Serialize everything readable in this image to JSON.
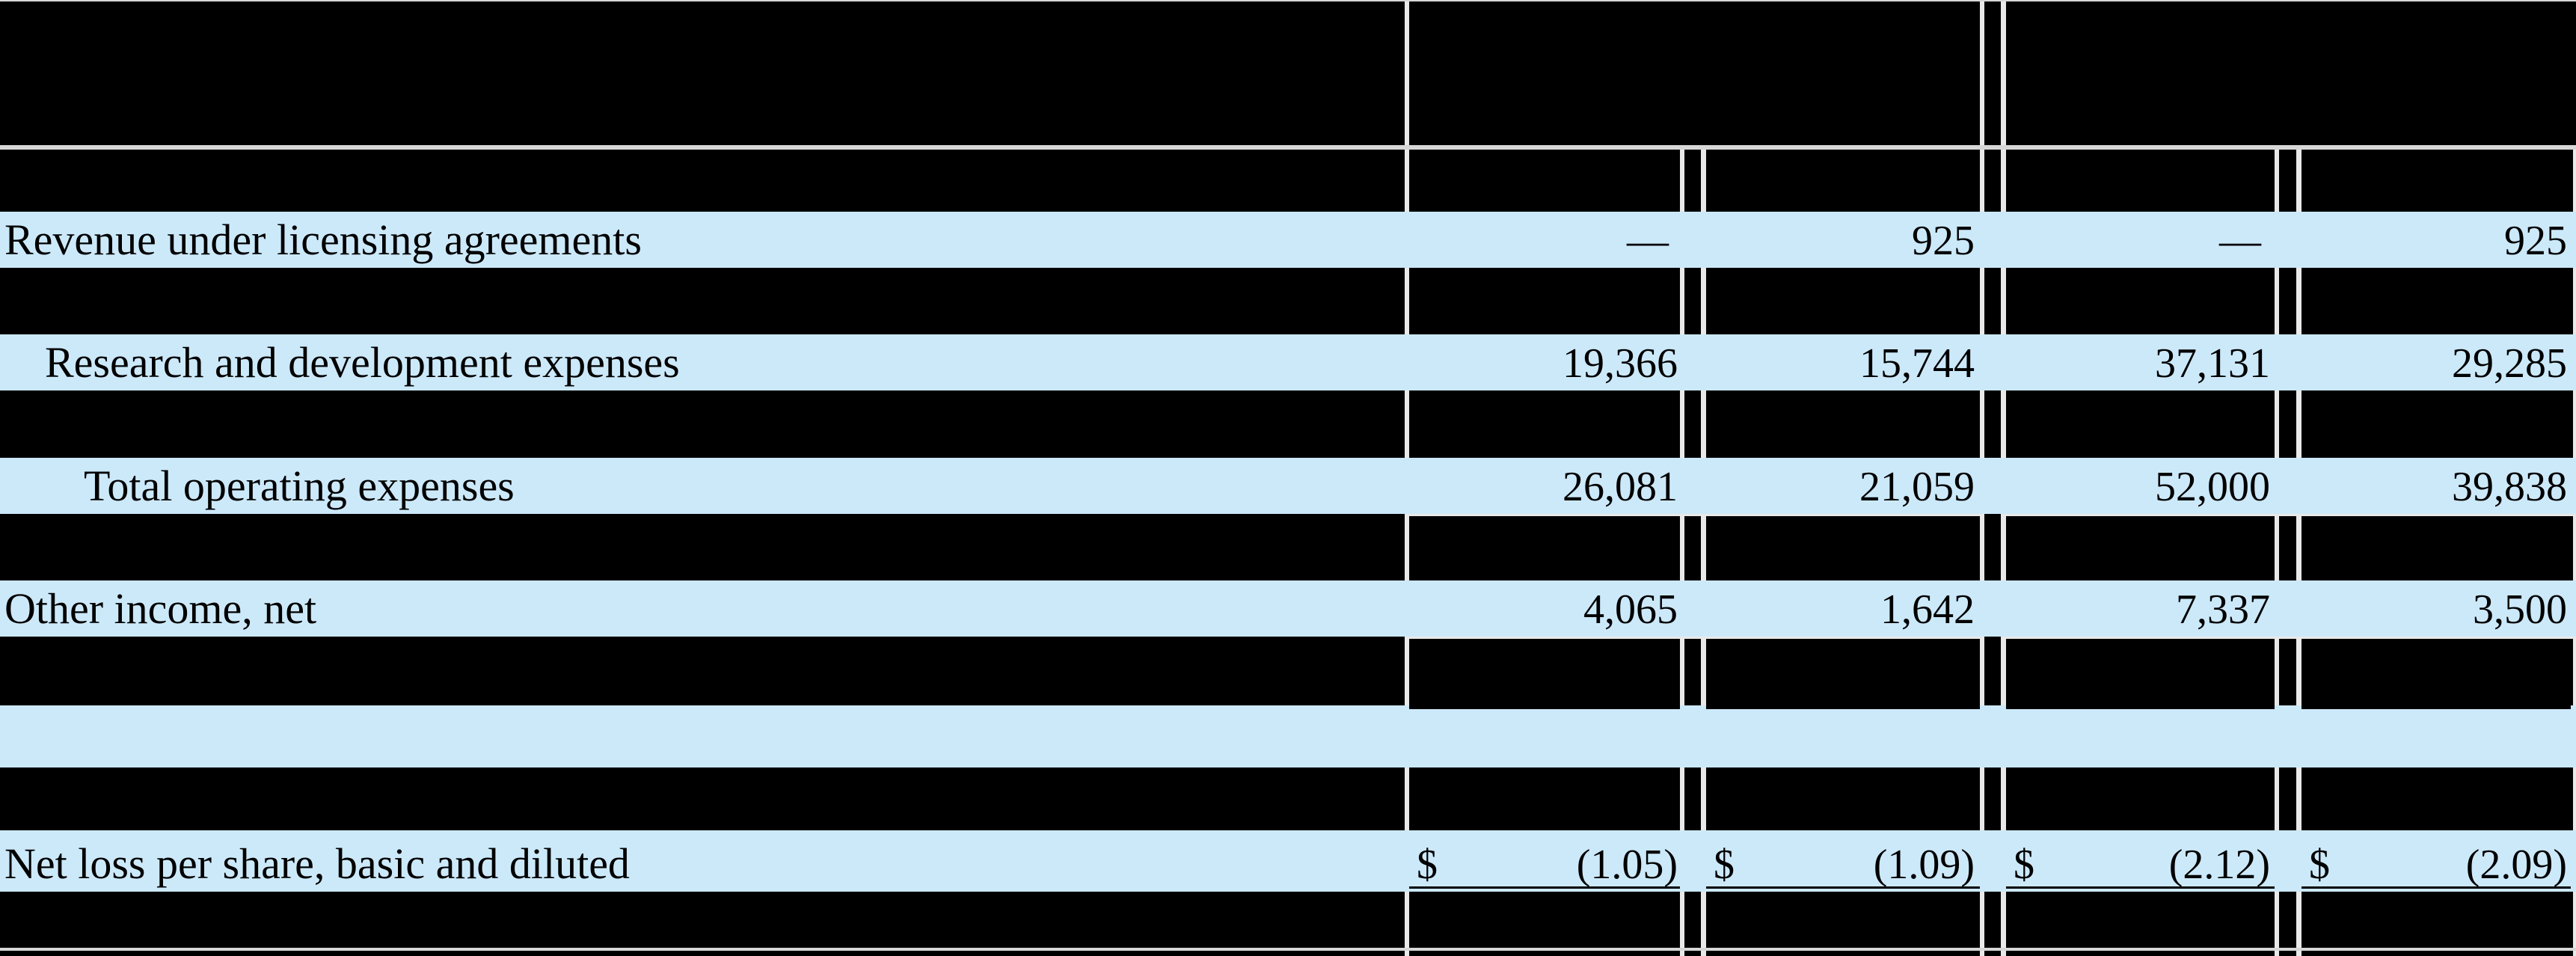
{
  "table": {
    "description": "Condensed statements of operations excerpt, highlighted rows visible",
    "columns": {
      "group_count": 2,
      "columns_per_group": 2
    },
    "rows": [
      {
        "label": "Revenue under licensing agreements",
        "indent": 0,
        "values": [
          "—",
          "925",
          "—",
          "925"
        ]
      },
      {
        "label": "Research and development expenses",
        "indent": 1,
        "values": [
          "19,366",
          "15,744",
          "37,131",
          "29,285"
        ]
      },
      {
        "label": "Total operating expenses",
        "indent": 2,
        "values": [
          "26,081",
          "21,059",
          "52,000",
          "39,838"
        ]
      },
      {
        "label": "Other income, net",
        "indent": 0,
        "values": [
          "4,065",
          "1,642",
          "7,337",
          "3,500"
        ]
      },
      {
        "label": "",
        "indent": 0,
        "values": [
          "",
          "",
          "",
          ""
        ]
      },
      {
        "label": "Net loss per share, basic and diluted",
        "indent": 0,
        "currency": "$",
        "values": [
          "(1.05)",
          "(1.09)",
          "(2.12)",
          "(2.09)"
        ]
      }
    ],
    "colors": {
      "highlight": "#cce9fa",
      "dark_row": "#000000",
      "cell_gap": "#e9e9e9",
      "rule_gray": "#d7d7d7",
      "text": "#000000"
    }
  }
}
